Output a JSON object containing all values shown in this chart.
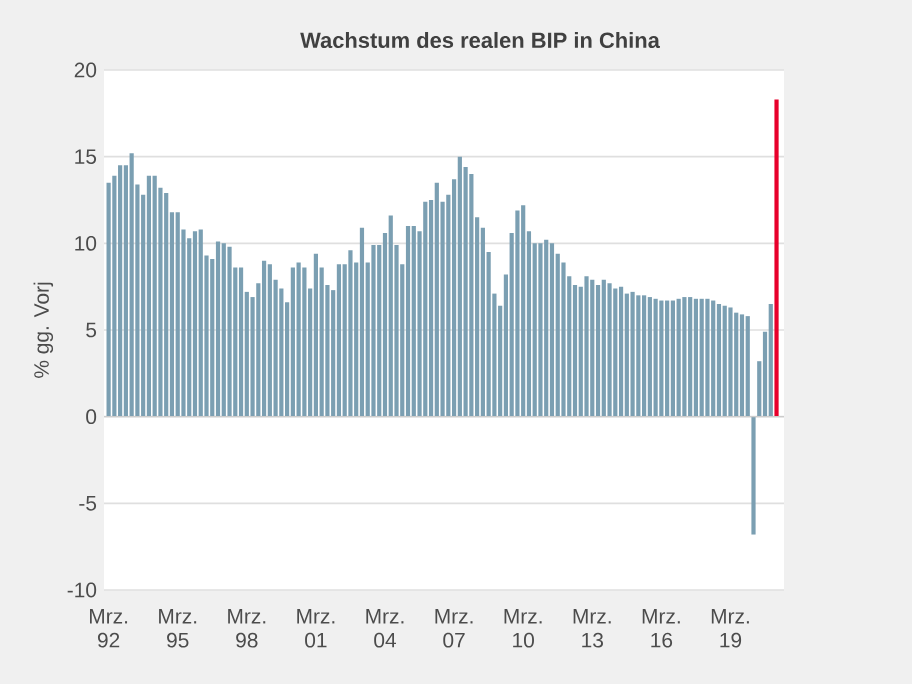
{
  "chart_data": {
    "type": "bar",
    "title": "Wachstum des realen BIP in China",
    "ylabel": "% gg. Vorj",
    "categories": [
      "Mrz. 92",
      null,
      null,
      null,
      null,
      null,
      null,
      null,
      null,
      null,
      null,
      null,
      "Mrz. 95",
      null,
      null,
      null,
      null,
      null,
      null,
      null,
      null,
      null,
      null,
      null,
      "Mrz. 98",
      null,
      null,
      null,
      null,
      null,
      null,
      null,
      null,
      null,
      null,
      null,
      "Mrz. 01",
      null,
      null,
      null,
      null,
      null,
      null,
      null,
      null,
      null,
      null,
      null,
      "Mrz. 04",
      null,
      null,
      null,
      null,
      null,
      null,
      null,
      null,
      null,
      null,
      null,
      "Mrz. 07",
      null,
      null,
      null,
      null,
      null,
      null,
      null,
      null,
      null,
      null,
      null,
      "Mrz. 10",
      null,
      null,
      null,
      null,
      null,
      null,
      null,
      null,
      null,
      null,
      null,
      "Mrz. 13",
      null,
      null,
      null,
      null,
      null,
      null,
      null,
      null,
      null,
      null,
      null,
      "Mrz. 16",
      null,
      null,
      null,
      null,
      null,
      null,
      null,
      null,
      null,
      null,
      null,
      "Mrz. 19",
      null,
      null,
      null,
      null,
      null,
      null,
      null,
      null
    ],
    "values": [
      13.5,
      13.9,
      14.5,
      14.5,
      15.2,
      13.4,
      12.8,
      13.9,
      13.9,
      13.2,
      12.9,
      11.8,
      11.8,
      10.8,
      10.3,
      10.7,
      10.8,
      9.3,
      9.1,
      10.1,
      10.0,
      9.8,
      8.6,
      8.6,
      7.2,
      6.9,
      7.7,
      9.0,
      8.8,
      7.9,
      7.4,
      6.6,
      8.6,
      8.9,
      8.6,
      7.4,
      9.4,
      8.6,
      7.6,
      7.3,
      8.8,
      8.8,
      9.6,
      8.9,
      10.9,
      8.9,
      9.9,
      9.9,
      10.6,
      11.6,
      9.9,
      8.8,
      11.0,
      11.0,
      10.7,
      12.4,
      12.5,
      13.5,
      12.4,
      12.8,
      13.7,
      15.0,
      14.4,
      14.0,
      11.5,
      10.9,
      9.5,
      7.1,
      6.4,
      8.2,
      10.6,
      11.9,
      12.2,
      10.7,
      10.0,
      10.0,
      10.2,
      10.0,
      9.4,
      8.9,
      8.1,
      7.6,
      7.5,
      8.1,
      7.9,
      7.6,
      7.9,
      7.7,
      7.4,
      7.5,
      7.1,
      7.2,
      7.0,
      7.0,
      6.9,
      6.8,
      6.7,
      6.7,
      6.7,
      6.8,
      6.9,
      6.9,
      6.8,
      6.8,
      6.8,
      6.7,
      6.5,
      6.4,
      6.3,
      6.0,
      5.9,
      5.8,
      -6.8,
      3.2,
      4.9,
      6.5,
      18.3
    ],
    "colors": [
      "#7b9fb2",
      "#7b9fb2",
      "#7b9fb2",
      "#7b9fb2",
      "#7b9fb2",
      "#7b9fb2",
      "#7b9fb2",
      "#7b9fb2",
      "#7b9fb2",
      "#7b9fb2",
      "#7b9fb2",
      "#7b9fb2",
      "#7b9fb2",
      "#7b9fb2",
      "#7b9fb2",
      "#7b9fb2",
      "#7b9fb2",
      "#7b9fb2",
      "#7b9fb2",
      "#7b9fb2",
      "#7b9fb2",
      "#7b9fb2",
      "#7b9fb2",
      "#7b9fb2",
      "#7b9fb2",
      "#7b9fb2",
      "#7b9fb2",
      "#7b9fb2",
      "#7b9fb2",
      "#7b9fb2",
      "#7b9fb2",
      "#7b9fb2",
      "#7b9fb2",
      "#7b9fb2",
      "#7b9fb2",
      "#7b9fb2",
      "#7b9fb2",
      "#7b9fb2",
      "#7b9fb2",
      "#7b9fb2",
      "#7b9fb2",
      "#7b9fb2",
      "#7b9fb2",
      "#7b9fb2",
      "#7b9fb2",
      "#7b9fb2",
      "#7b9fb2",
      "#7b9fb2",
      "#7b9fb2",
      "#7b9fb2",
      "#7b9fb2",
      "#7b9fb2",
      "#7b9fb2",
      "#7b9fb2",
      "#7b9fb2",
      "#7b9fb2",
      "#7b9fb2",
      "#7b9fb2",
      "#7b9fb2",
      "#7b9fb2",
      "#7b9fb2",
      "#7b9fb2",
      "#7b9fb2",
      "#7b9fb2",
      "#7b9fb2",
      "#7b9fb2",
      "#7b9fb2",
      "#7b9fb2",
      "#7b9fb2",
      "#7b9fb2",
      "#7b9fb2",
      "#7b9fb2",
      "#7b9fb2",
      "#7b9fb2",
      "#7b9fb2",
      "#7b9fb2",
      "#7b9fb2",
      "#7b9fb2",
      "#7b9fb2",
      "#7b9fb2",
      "#7b9fb2",
      "#7b9fb2",
      "#7b9fb2",
      "#7b9fb2",
      "#7b9fb2",
      "#7b9fb2",
      "#7b9fb2",
      "#7b9fb2",
      "#7b9fb2",
      "#7b9fb2",
      "#7b9fb2",
      "#7b9fb2",
      "#7b9fb2",
      "#7b9fb2",
      "#7b9fb2",
      "#7b9fb2",
      "#7b9fb2",
      "#7b9fb2",
      "#7b9fb2",
      "#7b9fb2",
      "#7b9fb2",
      "#7b9fb2",
      "#7b9fb2",
      "#7b9fb2",
      "#7b9fb2",
      "#7b9fb2",
      "#7b9fb2",
      "#7b9fb2",
      "#7b9fb2",
      "#7b9fb2",
      "#7b9fb2",
      "#7b9fb2",
      "#7b9fb2",
      "#7b9fb2",
      "#7b9fb2",
      "#7b9fb2",
      "#e8002b"
    ],
    "ylim": [
      -10,
      20
    ],
    "yticks": [
      -10,
      -5,
      0,
      5,
      10,
      15,
      20
    ],
    "grid": "y"
  }
}
